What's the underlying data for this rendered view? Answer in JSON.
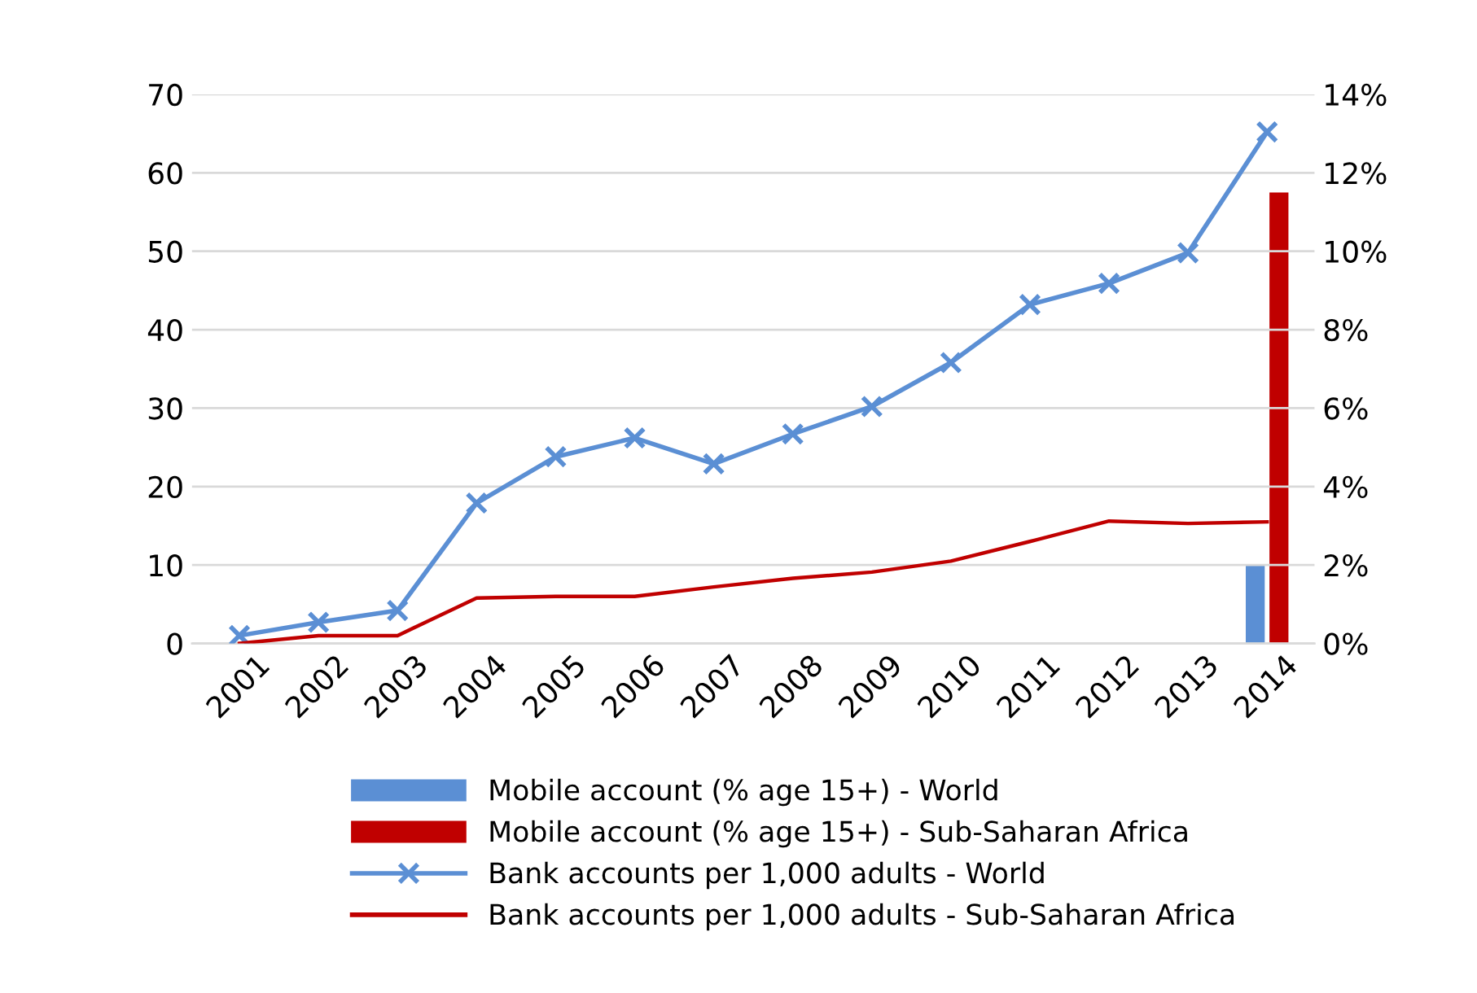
{
  "chart_data": {
    "type": "line",
    "categories": [
      "2001",
      "2002",
      "2003",
      "2004",
      "2005",
      "2006",
      "2007",
      "2008",
      "2009",
      "2010",
      "2011",
      "2012",
      "2013",
      "2014"
    ],
    "series": [
      {
        "name": "Mobile account (% age 15+) - World",
        "type": "bar",
        "axis": "y2",
        "color": "#5b8fd4",
        "values": [
          null,
          null,
          null,
          null,
          null,
          null,
          null,
          null,
          null,
          null,
          null,
          null,
          null,
          2
        ]
      },
      {
        "name": "Mobile account (% age 15+) - Sub-Saharan Africa",
        "type": "bar",
        "axis": "y2",
        "color": "#c00000",
        "values": [
          null,
          null,
          null,
          null,
          null,
          null,
          null,
          null,
          null,
          null,
          null,
          null,
          null,
          11.5
        ]
      },
      {
        "name": "Bank accounts per 1,000 adults - World",
        "marker": "cross",
        "color": "#5b8fd4",
        "values": [
          1,
          2.7,
          4.2,
          17.9,
          23.8,
          26.2,
          22.9,
          26.7,
          30.2,
          35.8,
          43.2,
          45.9,
          49.8,
          65.2
        ]
      },
      {
        "name": "Bank accounts per 1,000 adults - Sub-Saharan Africa",
        "marker": "none",
        "color": "#c00000",
        "values": [
          0,
          1,
          1,
          5.8,
          6,
          6,
          7.2,
          8.3,
          9.1,
          10.5,
          13,
          15.6,
          15.3,
          15.5
        ]
      }
    ],
    "ylim": [
      0,
      70
    ],
    "yticks": [
      0,
      10,
      20,
      30,
      40,
      50,
      60,
      70
    ],
    "y2lim": [
      0,
      14
    ],
    "y2ticks": [
      {
        "value": 0,
        "label": "0%"
      },
      {
        "value": 2,
        "label": "2%"
      },
      {
        "value": 4,
        "label": "4%"
      },
      {
        "value": 6,
        "label": "6%"
      },
      {
        "value": 8,
        "label": "8%"
      },
      {
        "value": 10,
        "label": "10%"
      },
      {
        "value": 12,
        "label": "12%"
      },
      {
        "value": 14,
        "label": "14%"
      }
    ],
    "grid": "y",
    "legend": "bottom",
    "line_style": "solid"
  }
}
